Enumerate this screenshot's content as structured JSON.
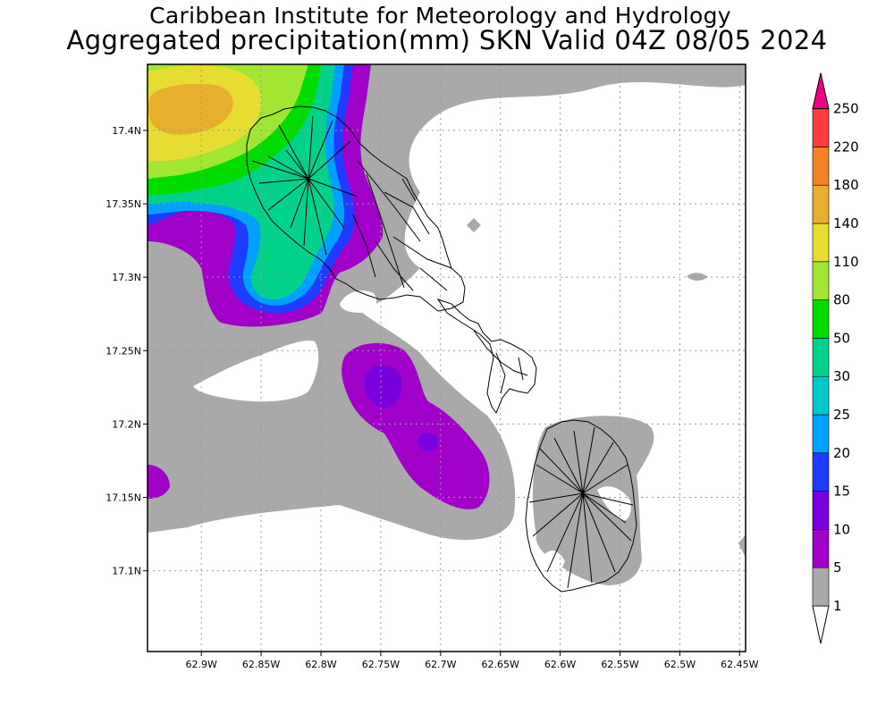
{
  "header": {
    "line1": "Caribbean Institute for Meteorology and Hydrology",
    "line2": "Aggregated precipitation(mm) SKN Valid 04Z 08/05 2024"
  },
  "map": {
    "lon_range": [
      -62.945,
      -62.445
    ],
    "lat_range": [
      17.045,
      17.445
    ],
    "lon_ticks": [
      {
        "value": -62.9,
        "label": "62.9W"
      },
      {
        "value": -62.85,
        "label": "62.85W"
      },
      {
        "value": -62.8,
        "label": "62.8W"
      },
      {
        "value": -62.75,
        "label": "62.75W"
      },
      {
        "value": -62.7,
        "label": "62.7W"
      },
      {
        "value": -62.65,
        "label": "62.65W"
      },
      {
        "value": -62.6,
        "label": "62.6W"
      },
      {
        "value": -62.55,
        "label": "62.55W"
      },
      {
        "value": -62.5,
        "label": "62.5W"
      },
      {
        "value": -62.45,
        "label": "62.45W"
      }
    ],
    "lat_ticks": [
      {
        "value": 17.4,
        "label": "17.4N"
      },
      {
        "value": 17.35,
        "label": "17.35N"
      },
      {
        "value": 17.3,
        "label": "17.3N"
      },
      {
        "value": 17.25,
        "label": "17.25N"
      },
      {
        "value": 17.2,
        "label": "17.2N"
      },
      {
        "value": 17.15,
        "label": "17.15N"
      },
      {
        "value": 17.1,
        "label": "17.1N"
      }
    ],
    "grid": "dotted"
  },
  "legend": {
    "units": "mm",
    "levels": [
      {
        "label": "1",
        "color": "#ffffff"
      },
      {
        "label": "5",
        "color": "#a9a9a9"
      },
      {
        "label": "10",
        "color": "#a000c8"
      },
      {
        "label": "15",
        "color": "#7800dc"
      },
      {
        "label": "20",
        "color": "#1e3cff"
      },
      {
        "label": "25",
        "color": "#00a0ff"
      },
      {
        "label": "30",
        "color": "#00c8c8"
      },
      {
        "label": "50",
        "color": "#00d28c"
      },
      {
        "label": "80",
        "color": "#00dc00"
      },
      {
        "label": "110",
        "color": "#a0e632"
      },
      {
        "label": "140",
        "color": "#e6dc32"
      },
      {
        "label": "180",
        "color": "#e6af2d"
      },
      {
        "label": "220",
        "color": "#f08228"
      },
      {
        "label": "250",
        "color": "#fa3c3c"
      }
    ],
    "over_color": "#f00082"
  }
}
